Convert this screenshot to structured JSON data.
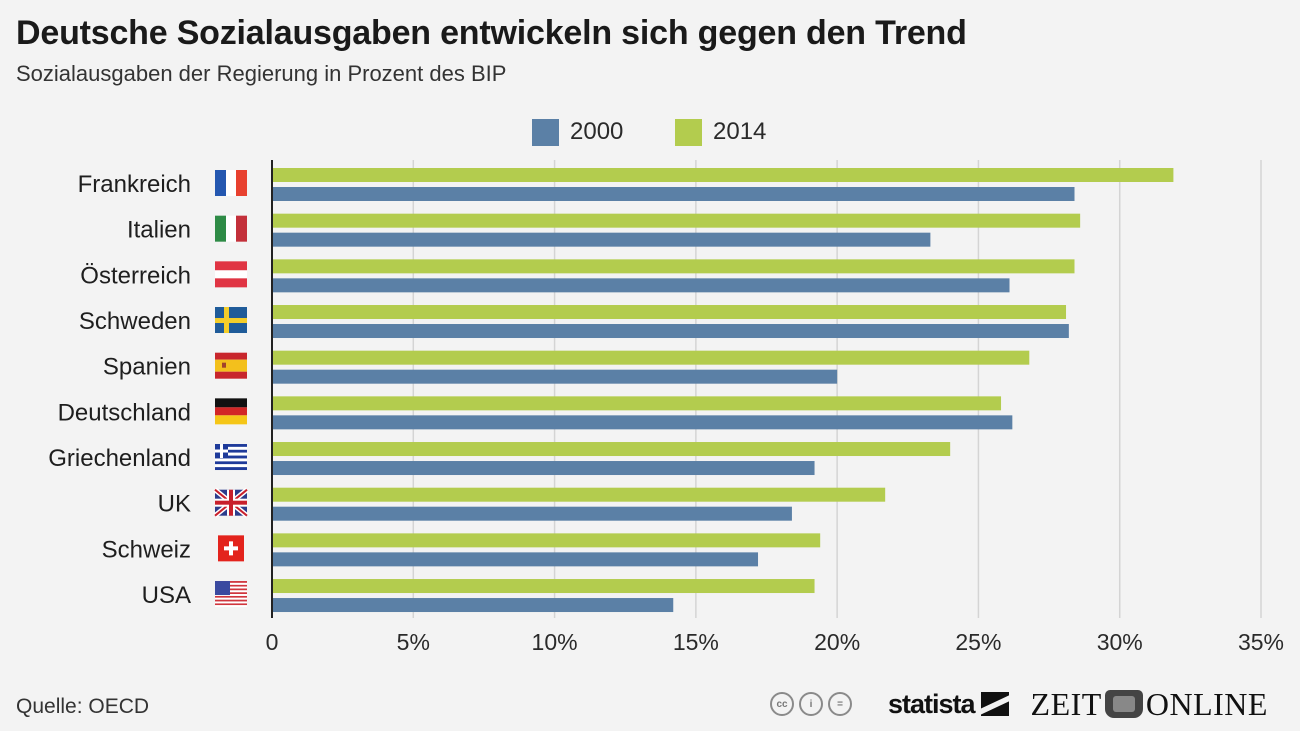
{
  "header": {
    "title": "Deutsche Sozialausgaben entwickeln sich gegen den Trend",
    "subtitle": "Sozialausgaben der Regierung in Prozent des BIP"
  },
  "footer": {
    "source": "Quelle: OECD",
    "license_icons": [
      "cc-icon",
      "by-icon",
      "nd-icon"
    ],
    "license_icon_text": [
      "cc",
      "i",
      "="
    ],
    "brand_statista": "statista",
    "brand_zeit_left": "ZEIT",
    "brand_zeit_right": "ONLINE"
  },
  "colors": {
    "series_2000": "#5b80a6",
    "series_2014": "#b3cc4e",
    "axis": "#222222",
    "grid": "#d4d4d4",
    "background": "#f3f3f3"
  },
  "chart_data": {
    "type": "bar",
    "orientation": "horizontal",
    "title": "Deutsche Sozialausgaben entwickeln sich gegen den Trend",
    "subtitle": "Sozialausgaben der Regierung in Prozent des BIP",
    "xlabel": "",
    "ylabel": "",
    "xlim": [
      0,
      35
    ],
    "x_ticks": [
      0,
      5,
      10,
      15,
      20,
      25,
      30,
      35
    ],
    "x_tick_labels": [
      "0",
      "5%",
      "10%",
      "15%",
      "20%",
      "25%",
      "30%",
      "35%"
    ],
    "grid": true,
    "legend_position": "top-center",
    "categories": [
      "Frankreich",
      "Italien",
      "Österreich",
      "Schweden",
      "Spanien",
      "Deutschland",
      "Griechenland",
      "UK",
      "Schweiz",
      "USA"
    ],
    "category_flags": [
      "flag-france",
      "flag-italy",
      "flag-austria",
      "flag-sweden",
      "flag-spain",
      "flag-germany",
      "flag-greece",
      "flag-uk",
      "flag-switzerland",
      "flag-usa"
    ],
    "series": [
      {
        "name": "2000",
        "color": "#5b80a6",
        "values": [
          28.4,
          23.3,
          26.1,
          28.2,
          20.0,
          26.2,
          19.2,
          18.4,
          17.2,
          14.2
        ]
      },
      {
        "name": "2014",
        "color": "#b3cc4e",
        "values": [
          31.9,
          28.6,
          28.4,
          28.1,
          26.8,
          25.8,
          24.0,
          21.7,
          19.4,
          19.2
        ]
      }
    ],
    "source": "OECD"
  }
}
